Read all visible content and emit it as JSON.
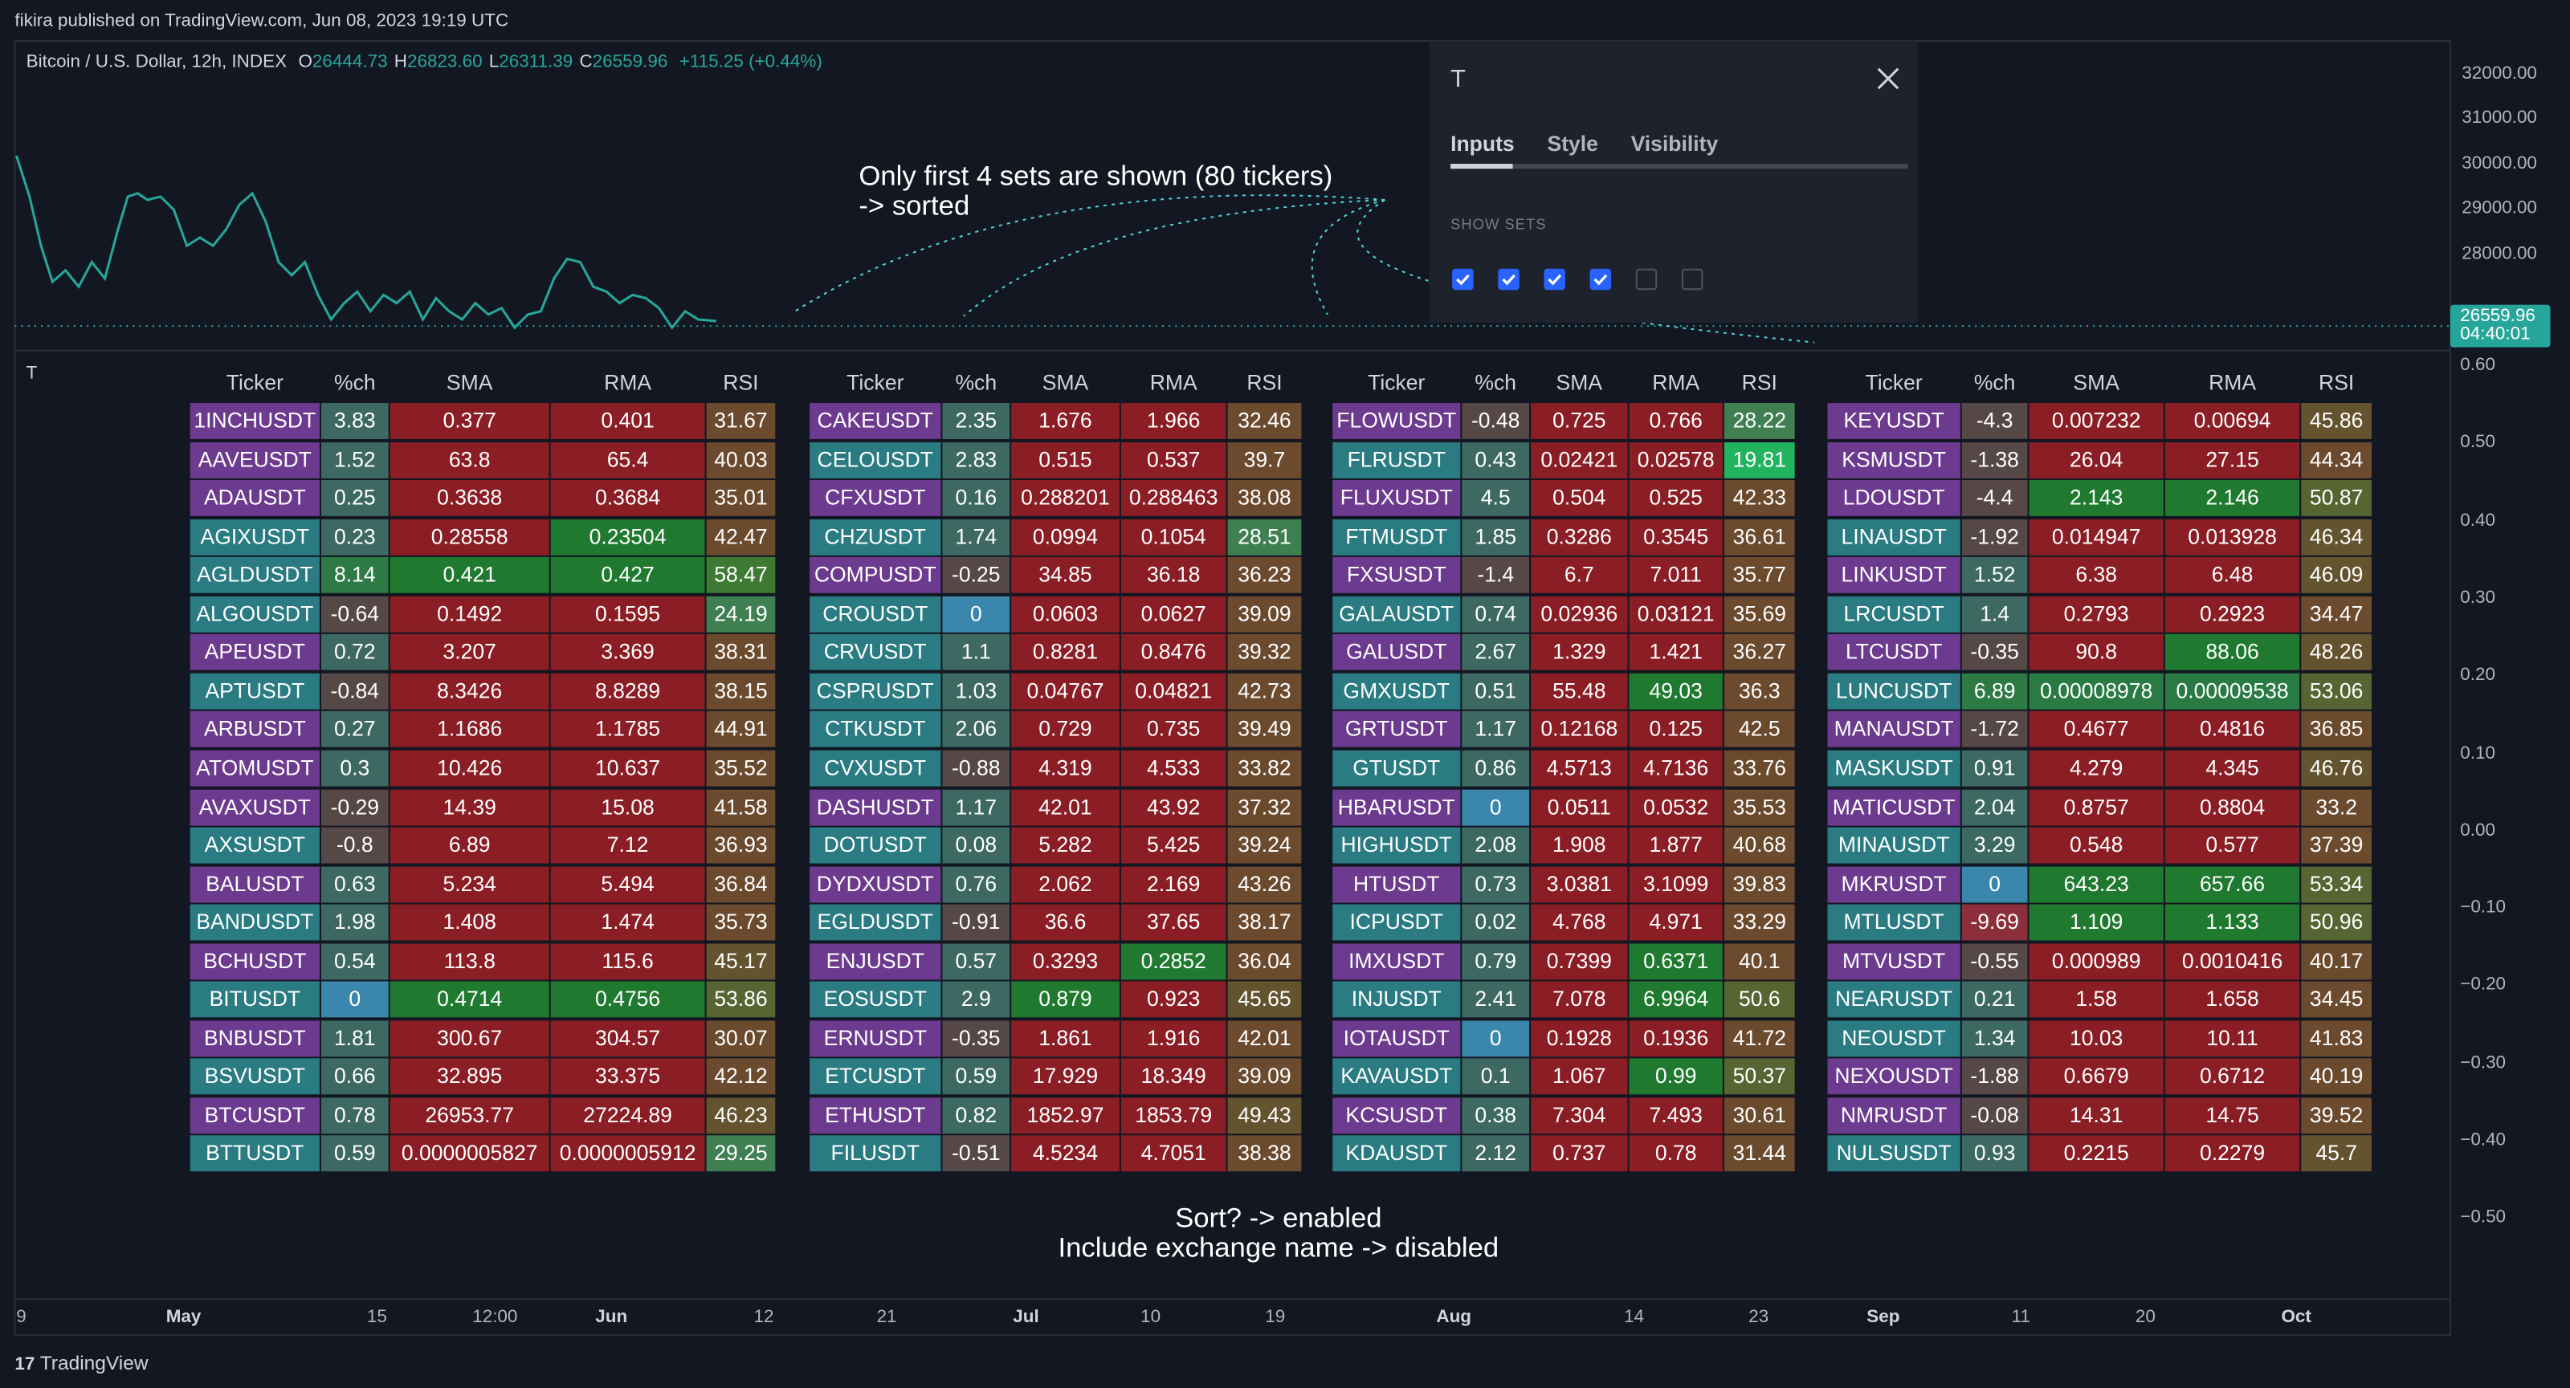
{
  "header": {
    "text": "fikira published on TradingView.com, Jun 08, 2023 19:19 UTC"
  },
  "symbol": {
    "name": "Bitcoin / U.S. Dollar, 12h, INDEX",
    "ohlc": [
      {
        "label": "O",
        "value": "26444.73"
      },
      {
        "label": "H",
        "value": "26823.60"
      },
      {
        "label": "L",
        "value": "26311.39"
      },
      {
        "label": "C",
        "value": "26559.96"
      }
    ],
    "change": "+115.25 (+0.44%)"
  },
  "price_axis": {
    "ticks": [
      "32000.00",
      "31000.00",
      "30000.00",
      "29000.00",
      "28000.00"
    ],
    "last_price": "26559.96",
    "countdown": "04:40:01"
  },
  "pane_title": "T",
  "oscillator_axis": {
    "ticks": [
      "0.60",
      "0.50",
      "0.40",
      "0.30",
      "0.20",
      "0.10",
      "0.00",
      "−0.10",
      "−0.20",
      "−0.30",
      "−0.40",
      "−0.50"
    ]
  },
  "time_axis": {
    "ticks": [
      "9",
      "May",
      "15",
      "12:00",
      "Jun",
      "12",
      "21",
      "Jul",
      "10",
      "19",
      "Aug",
      "14",
      "23",
      "Sep",
      "11",
      "20",
      "Oct"
    ]
  },
  "annotations": [
    "Only first 4 sets are shown (80 tickers)",
    "-> sorted",
    "Sort? -> enabled",
    "Include exchange name -> disabled"
  ],
  "settings_panel": {
    "title": "T",
    "tabs": [
      "Inputs",
      "Style",
      "Visibility"
    ],
    "section": "SHOW SETS",
    "show_sets": [
      true,
      true,
      true,
      true,
      false,
      false
    ]
  },
  "columns": [
    "Ticker",
    "%ch",
    "SMA",
    "RMA",
    "RSI"
  ],
  "tables": [
    {
      "rows": [
        [
          "1INCHUSDT",
          "3.83",
          "0.377",
          "0.401",
          "31.67"
        ],
        [
          "AAVEUSDT",
          "1.52",
          "63.8",
          "65.4",
          "40.03"
        ],
        [
          "ADAUSDT",
          "0.25",
          "0.3638",
          "0.3684",
          "35.01"
        ],
        [
          "AGIXUSDT",
          "0.23",
          "0.28558",
          "0.23504",
          "42.47"
        ],
        [
          "AGLDUSDT",
          "8.14",
          "0.421",
          "0.427",
          "58.47"
        ],
        [
          "ALGOUSDT",
          "-0.64",
          "0.1492",
          "0.1595",
          "24.19"
        ],
        [
          "APEUSDT",
          "0.72",
          "3.207",
          "3.369",
          "38.31"
        ],
        [
          "APTUSDT",
          "-0.84",
          "8.3426",
          "8.8289",
          "38.15"
        ],
        [
          "ARBUSDT",
          "0.27",
          "1.1686",
          "1.1785",
          "44.91"
        ],
        [
          "ATOMUSDT",
          "0.3",
          "10.426",
          "10.637",
          "35.52"
        ],
        [
          "AVAXUSDT",
          "-0.29",
          "14.39",
          "15.08",
          "41.58"
        ],
        [
          "AXSUSDT",
          "-0.8",
          "6.89",
          "7.12",
          "36.93"
        ],
        [
          "BALUSDT",
          "0.63",
          "5.234",
          "5.494",
          "36.84"
        ],
        [
          "BANDUSDT",
          "1.98",
          "1.408",
          "1.474",
          "35.73"
        ],
        [
          "BCHUSDT",
          "0.54",
          "113.8",
          "115.6",
          "45.17"
        ],
        [
          "BITUSDT",
          "0",
          "0.4714",
          "0.4756",
          "53.86"
        ],
        [
          "BNBUSDT",
          "1.81",
          "300.67",
          "304.57",
          "30.07"
        ],
        [
          "BSVUSDT",
          "0.66",
          "32.895",
          "33.375",
          "42.12"
        ],
        [
          "BTCUSDT",
          "0.78",
          "26953.77",
          "27224.89",
          "46.23"
        ],
        [
          "BTTUSDT",
          "0.59",
          "0.0000005827",
          "0.0000005912",
          "29.25"
        ]
      ],
      "ticker_colors": [
        "#6c3a8f",
        "#6c3a8f",
        "#6c3a8f",
        "#2a7b82",
        "#2a7b82",
        "#2a7b82",
        "#6c3a8f",
        "#2a7b82",
        "#6c3a8f",
        "#6c3a8f",
        "#6c3a8f",
        "#2a7b82",
        "#6c3a8f",
        "#2a7b82",
        "#6c3a8f",
        "#2a7b82",
        "#6c3a8f",
        "#2a7b82",
        "#6c3a8f",
        "#2a7b82"
      ],
      "sma_colors": [
        "#8b1d24",
        "#8b1d24",
        "#8b1d24",
        "#8b1d24",
        "#1f7a2f",
        "#8b1d24",
        "#8b1d24",
        "#8b1d24",
        "#8b1d24",
        "#8b1d24",
        "#8b1d24",
        "#8b1d24",
        "#8b1d24",
        "#8b1d24",
        "#8b1d24",
        "#1f7a2f",
        "#8b1d24",
        "#8b1d24",
        "#8b1d24",
        "#8b1d24"
      ],
      "rma_colors": [
        "#8b1d24",
        "#8b1d24",
        "#8b1d24",
        "#1f7a2f",
        "#1f7a2f",
        "#8b1d24",
        "#8b1d24",
        "#8b1d24",
        "#8b1d24",
        "#8b1d24",
        "#8b1d24",
        "#8b1d24",
        "#8b1d24",
        "#8b1d24",
        "#8b1d24",
        "#1f7a2f",
        "#8b1d24",
        "#8b1d24",
        "#8b1d24",
        "#8b1d24"
      ]
    },
    {
      "rows": [
        [
          "CAKEUSDT",
          "2.35",
          "1.676",
          "1.966",
          "32.46"
        ],
        [
          "CELOUSDT",
          "2.83",
          "0.515",
          "0.537",
          "39.7"
        ],
        [
          "CFXUSDT",
          "0.16",
          "0.288201",
          "0.288463",
          "38.08"
        ],
        [
          "CHZUSDT",
          "1.74",
          "0.0994",
          "0.1054",
          "28.51"
        ],
        [
          "COMPUSDT",
          "-0.25",
          "34.85",
          "36.18",
          "36.23"
        ],
        [
          "CROUSDT",
          "0",
          "0.0603",
          "0.0627",
          "39.09"
        ],
        [
          "CRVUSDT",
          "1.1",
          "0.8281",
          "0.8476",
          "39.32"
        ],
        [
          "CSPRUSDT",
          "1.03",
          "0.04767",
          "0.04821",
          "42.73"
        ],
        [
          "CTKUSDT",
          "2.06",
          "0.729",
          "0.735",
          "39.49"
        ],
        [
          "CVXUSDT",
          "-0.88",
          "4.319",
          "4.533",
          "33.82"
        ],
        [
          "DASHUSDT",
          "1.17",
          "42.01",
          "43.92",
          "37.32"
        ],
        [
          "DOTUSDT",
          "0.08",
          "5.282",
          "5.425",
          "39.24"
        ],
        [
          "DYDXUSDT",
          "0.76",
          "2.062",
          "2.169",
          "43.26"
        ],
        [
          "EGLDUSDT",
          "-0.91",
          "36.6",
          "37.65",
          "38.17"
        ],
        [
          "ENJUSDT",
          "0.57",
          "0.3293",
          "0.2852",
          "36.04"
        ],
        [
          "EOSUSDT",
          "2.9",
          "0.879",
          "0.923",
          "45.65"
        ],
        [
          "ERNUSDT",
          "-0.35",
          "1.861",
          "1.916",
          "42.01"
        ],
        [
          "ETCUSDT",
          "0.59",
          "17.929",
          "18.349",
          "39.09"
        ],
        [
          "ETHUSDT",
          "0.82",
          "1852.97",
          "1853.79",
          "49.43"
        ],
        [
          "FILUSDT",
          "-0.51",
          "4.5234",
          "4.7051",
          "38.38"
        ]
      ],
      "ticker_colors": [
        "#6c3a8f",
        "#2a7b82",
        "#6c3a8f",
        "#2a7b82",
        "#6c3a8f",
        "#2a7b82",
        "#2a7b82",
        "#2a7b82",
        "#2a7b82",
        "#2a7b82",
        "#6c3a8f",
        "#2a7b82",
        "#6c3a8f",
        "#2a7b82",
        "#6c3a8f",
        "#2a7b82",
        "#6c3a8f",
        "#2a7b82",
        "#6c3a8f",
        "#2a7b82"
      ],
      "sma_colors": [
        "#8b1d24",
        "#8b1d24",
        "#8b1d24",
        "#8b1d24",
        "#8b1d24",
        "#8b1d24",
        "#8b1d24",
        "#8b1d24",
        "#8b1d24",
        "#8b1d24",
        "#8b1d24",
        "#8b1d24",
        "#8b1d24",
        "#8b1d24",
        "#8b1d24",
        "#1f7a2f",
        "#8b1d24",
        "#8b1d24",
        "#8b1d24",
        "#8b1d24"
      ],
      "rma_colors": [
        "#8b1d24",
        "#8b1d24",
        "#8b1d24",
        "#8b1d24",
        "#8b1d24",
        "#8b1d24",
        "#8b1d24",
        "#8b1d24",
        "#8b1d24",
        "#8b1d24",
        "#8b1d24",
        "#8b1d24",
        "#8b1d24",
        "#8b1d24",
        "#1f7a2f",
        "#8b1d24",
        "#8b1d24",
        "#8b1d24",
        "#8b1d24",
        "#8b1d24"
      ]
    },
    {
      "rows": [
        [
          "FLOWUSDT",
          "-0.48",
          "0.725",
          "0.766",
          "28.22"
        ],
        [
          "FLRUSDT",
          "0.43",
          "0.02421",
          "0.02578",
          "19.81"
        ],
        [
          "FLUXUSDT",
          "4.5",
          "0.504",
          "0.525",
          "42.33"
        ],
        [
          "FTMUSDT",
          "1.85",
          "0.3286",
          "0.3545",
          "36.61"
        ],
        [
          "FXSUSDT",
          "-1.4",
          "6.7",
          "7.011",
          "35.77"
        ],
        [
          "GALAUSDT",
          "0.74",
          "0.02936",
          "0.03121",
          "35.69"
        ],
        [
          "GALUSDT",
          "2.67",
          "1.329",
          "1.421",
          "36.27"
        ],
        [
          "GMXUSDT",
          "0.51",
          "55.48",
          "49.03",
          "36.3"
        ],
        [
          "GRTUSDT",
          "1.17",
          "0.12168",
          "0.125",
          "42.5"
        ],
        [
          "GTUSDT",
          "0.86",
          "4.5713",
          "4.7136",
          "33.76"
        ],
        [
          "HBARUSDT",
          "0",
          "0.0511",
          "0.0532",
          "35.53"
        ],
        [
          "HIGHUSDT",
          "2.08",
          "1.908",
          "1.877",
          "40.68"
        ],
        [
          "HTUSDT",
          "0.73",
          "3.0381",
          "3.1099",
          "39.83"
        ],
        [
          "ICPUSDT",
          "0.02",
          "4.768",
          "4.971",
          "33.29"
        ],
        [
          "IMXUSDT",
          "0.79",
          "0.7399",
          "0.6371",
          "40.1"
        ],
        [
          "INJUSDT",
          "2.41",
          "7.078",
          "6.9964",
          "50.6"
        ],
        [
          "IOTAUSDT",
          "0",
          "0.1928",
          "0.1936",
          "41.72"
        ],
        [
          "KAVAUSDT",
          "0.1",
          "1.067",
          "0.99",
          "50.37"
        ],
        [
          "KCSUSDT",
          "0.38",
          "7.304",
          "7.493",
          "30.61"
        ],
        [
          "KDAUSDT",
          "2.12",
          "0.737",
          "0.78",
          "31.44"
        ]
      ],
      "ticker_colors": [
        "#6c3a8f",
        "#2a7b82",
        "#6c3a8f",
        "#2a7b82",
        "#6c3a8f",
        "#2a7b82",
        "#6c3a8f",
        "#2a7b82",
        "#6c3a8f",
        "#2a7b82",
        "#6c3a8f",
        "#2a7b82",
        "#6c3a8f",
        "#2a7b82",
        "#6c3a8f",
        "#2a7b82",
        "#6c3a8f",
        "#2a7b82",
        "#6c3a8f",
        "#2a7b82"
      ],
      "sma_colors": [
        "#8b1d24",
        "#8b1d24",
        "#8b1d24",
        "#8b1d24",
        "#8b1d24",
        "#8b1d24",
        "#8b1d24",
        "#8b1d24",
        "#8b1d24",
        "#8b1d24",
        "#8b1d24",
        "#8b1d24",
        "#8b1d24",
        "#8b1d24",
        "#8b1d24",
        "#8b1d24",
        "#8b1d24",
        "#8b1d24",
        "#8b1d24",
        "#8b1d24"
      ],
      "rma_colors": [
        "#8b1d24",
        "#8b1d24",
        "#8b1d24",
        "#8b1d24",
        "#8b1d24",
        "#8b1d24",
        "#8b1d24",
        "#1f7a2f",
        "#8b1d24",
        "#8b1d24",
        "#8b1d24",
        "#8b1d24",
        "#8b1d24",
        "#8b1d24",
        "#1f7a2f",
        "#1f7a2f",
        "#8b1d24",
        "#1f7a2f",
        "#8b1d24",
        "#8b1d24"
      ]
    },
    {
      "rows": [
        [
          "KEYUSDT",
          "-4.3",
          "0.007232",
          "0.00694",
          "45.86"
        ],
        [
          "KSMUSDT",
          "-1.38",
          "26.04",
          "27.15",
          "44.34"
        ],
        [
          "LDOUSDT",
          "-4.4",
          "2.143",
          "2.146",
          "50.87"
        ],
        [
          "LINAUSDT",
          "-1.92",
          "0.014947",
          "0.013928",
          "46.34"
        ],
        [
          "LINKUSDT",
          "1.52",
          "6.38",
          "6.48",
          "46.09"
        ],
        [
          "LRCUSDT",
          "1.4",
          "0.2793",
          "0.2923",
          "34.47"
        ],
        [
          "LTCUSDT",
          "-0.35",
          "90.8",
          "88.06",
          "48.26"
        ],
        [
          "LUNCUSDT",
          "6.89",
          "0.00008978",
          "0.00009538",
          "53.06"
        ],
        [
          "MANAUSDT",
          "-1.72",
          "0.4677",
          "0.4816",
          "36.85"
        ],
        [
          "MASKUSDT",
          "0.91",
          "4.279",
          "4.345",
          "46.76"
        ],
        [
          "MATICUSDT",
          "2.04",
          "0.8757",
          "0.8804",
          "33.2"
        ],
        [
          "MINAUSDT",
          "3.29",
          "0.548",
          "0.577",
          "37.39"
        ],
        [
          "MKRUSDT",
          "0",
          "643.23",
          "657.66",
          "53.34"
        ],
        [
          "MTLUSDT",
          "-9.69",
          "1.109",
          "1.133",
          "50.96"
        ],
        [
          "MTVUSDT",
          "-0.55",
          "0.000989",
          "0.0010416",
          "40.17"
        ],
        [
          "NEARUSDT",
          "0.21",
          "1.58",
          "1.658",
          "34.45"
        ],
        [
          "NEOUSDT",
          "1.34",
          "10.03",
          "10.11",
          "41.83"
        ],
        [
          "NEXOUSDT",
          "-1.88",
          "0.6679",
          "0.6712",
          "40.19"
        ],
        [
          "NMRUSDT",
          "-0.08",
          "14.31",
          "14.75",
          "39.52"
        ],
        [
          "NULSUSDT",
          "0.93",
          "0.2215",
          "0.2279",
          "45.7"
        ]
      ],
      "ticker_colors": [
        "#6c3a8f",
        "#6c3a8f",
        "#6c3a8f",
        "#2a7b82",
        "#6c3a8f",
        "#2a7b82",
        "#6c3a8f",
        "#2a7b82",
        "#6c3a8f",
        "#2a7b82",
        "#6c3a8f",
        "#2a7b82",
        "#6c3a8f",
        "#2a7b82",
        "#6c3a8f",
        "#2a7b82",
        "#2a7b82",
        "#6c3a8f",
        "#6c3a8f",
        "#2a7b82"
      ],
      "sma_colors": [
        "#8b1d24",
        "#8b1d24",
        "#1f7a2f",
        "#8b1d24",
        "#8b1d24",
        "#8b1d24",
        "#8b1d24",
        "#2a7a44",
        "#8b1d24",
        "#8b1d24",
        "#8b1d24",
        "#8b1d24",
        "#1f7a2f",
        "#1f7a2f",
        "#8b1d24",
        "#8b1d24",
        "#8b1d24",
        "#8b1d24",
        "#8b1d24",
        "#8b1d24"
      ],
      "rma_colors": [
        "#8b1d24",
        "#8b1d24",
        "#1f7a2f",
        "#8b1d24",
        "#8b1d24",
        "#8b1d24",
        "#1f7a2f",
        "#2a7a44",
        "#8b1d24",
        "#8b1d24",
        "#8b1d24",
        "#8b1d24",
        "#1f7a2f",
        "#1f7a2f",
        "#8b1d24",
        "#8b1d24",
        "#8b1d24",
        "#8b1d24",
        "#8b1d24",
        "#8b1d24"
      ]
    }
  ],
  "footer": "TradingView"
}
